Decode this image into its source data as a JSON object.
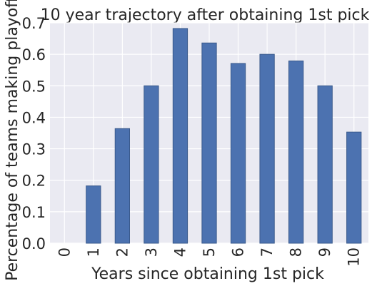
{
  "chart_data": {
    "type": "bar",
    "title": "10 year trajectory after obtaining 1st pick",
    "xlabel": "Years since obtaining 1st pick",
    "ylabel": "Percentage of teams making playoffs",
    "categories": [
      "0",
      "1",
      "2",
      "3",
      "4",
      "5",
      "6",
      "7",
      "8",
      "9",
      "10"
    ],
    "values": [
      0.0,
      0.182,
      0.364,
      0.5,
      0.682,
      0.636,
      0.571,
      0.6,
      0.579,
      0.5,
      0.353
    ],
    "ylim": [
      0.0,
      0.7
    ],
    "yticks": [
      "0.0",
      "0.1",
      "0.2",
      "0.3",
      "0.4",
      "0.5",
      "0.6",
      "0.7"
    ],
    "grid": true,
    "colors": {
      "bar": "#4c72b0",
      "background": "#eaeaf2",
      "grid": "#ffffff"
    }
  }
}
